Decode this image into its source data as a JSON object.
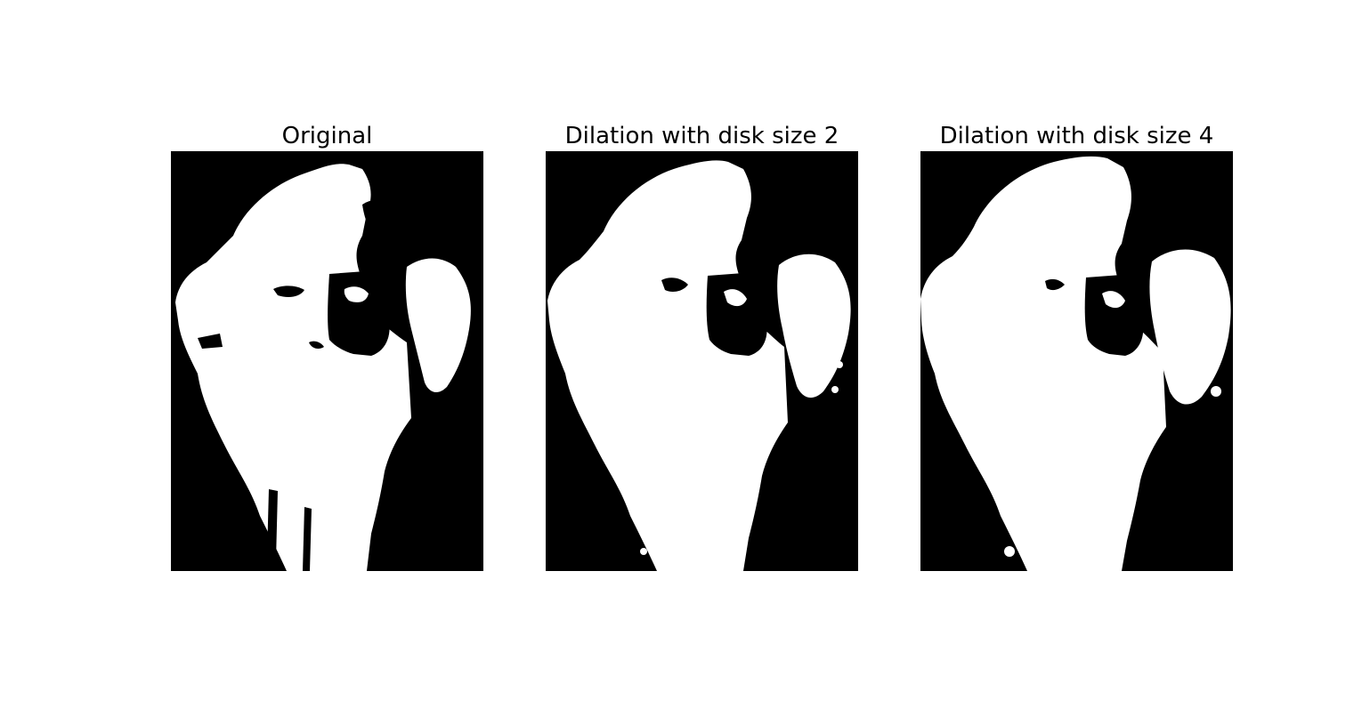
{
  "figure": {
    "panels": [
      {
        "title": "Original",
        "kind": "original"
      },
      {
        "title": "Dilation with disk size 2",
        "kind": "dilation-2"
      },
      {
        "title": "Dilation with disk size 4",
        "kind": "dilation-4"
      }
    ]
  },
  "colors": {
    "background": "#000000",
    "foreground": "#ffffff"
  }
}
